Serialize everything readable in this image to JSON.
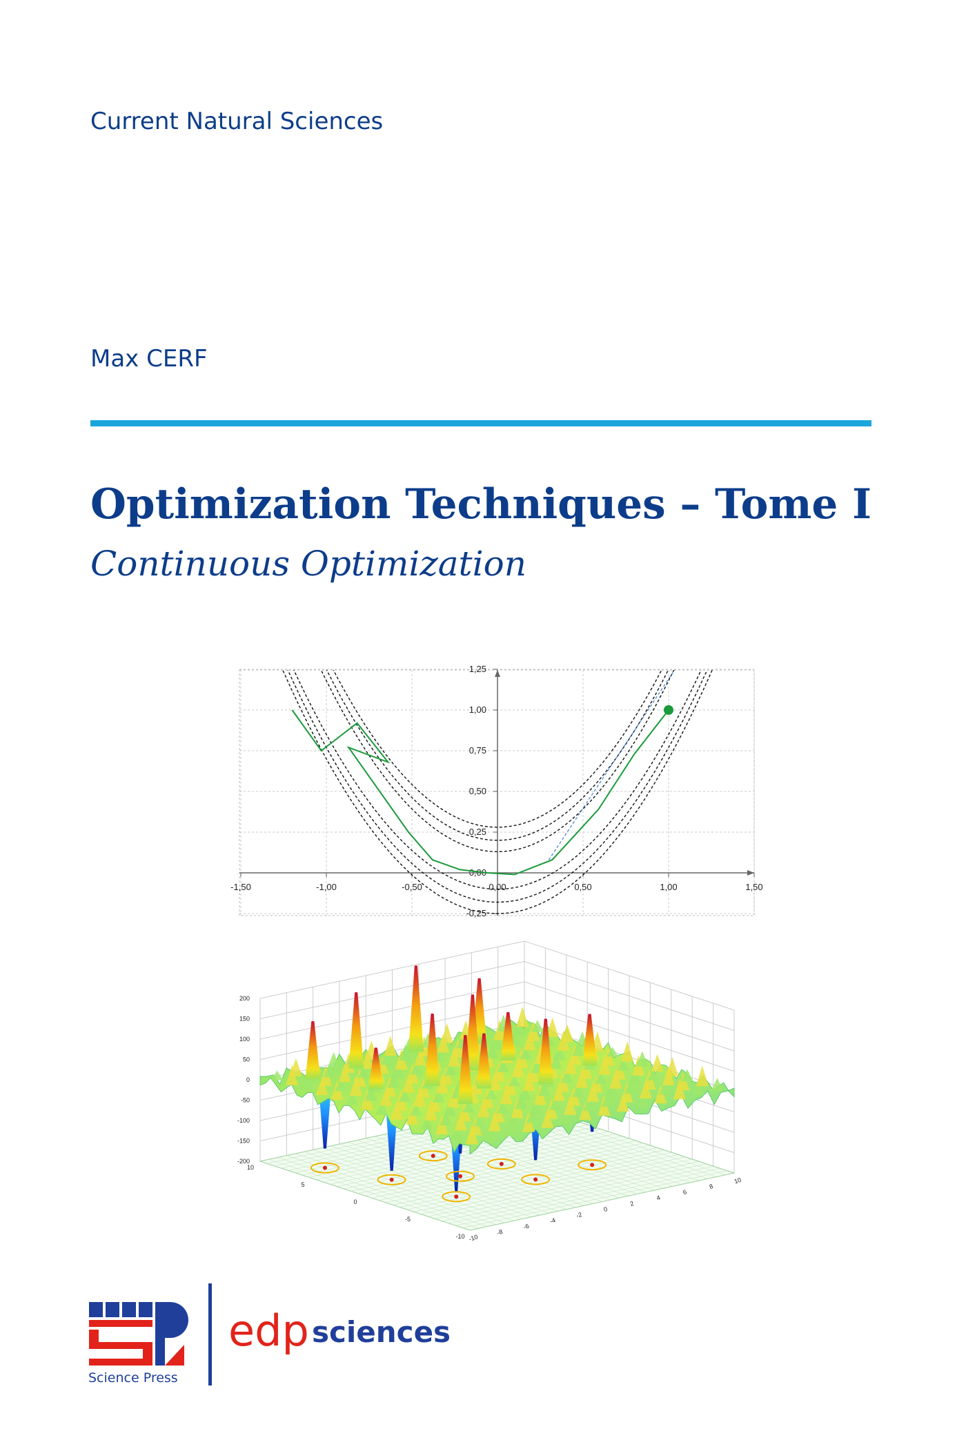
{
  "series": "Current Natural Sciences",
  "author": "Max CERF",
  "title": "Optimization Techniques – Tome I",
  "subtitle": "Continuous Optimization",
  "figures": {
    "plot_2d": {
      "x_ticks": [
        "-1,50",
        "-1,00",
        "-0,50",
        "0,00",
        "0,50",
        "1,00",
        "1,50"
      ],
      "y_ticks": [
        "1,25",
        "1,00",
        "0,75",
        "0,50",
        "0,25",
        "0,00",
        "-0,25"
      ]
    },
    "plot_3d": {
      "z_ticks": [
        "200",
        "150",
        "100",
        "50",
        "0",
        "-50",
        "-100",
        "-150",
        "-200"
      ],
      "left_ticks": [
        "10",
        "5",
        "0",
        "-5",
        "-10"
      ],
      "right_ticks": [
        "-10",
        "-8",
        "-6",
        "-4",
        "-2",
        "0",
        "2",
        "4",
        "6",
        "8",
        "10"
      ]
    }
  },
  "publishers": {
    "science_press": "Science Press",
    "edp_mark": "edp",
    "edp_word": "sciences"
  }
}
